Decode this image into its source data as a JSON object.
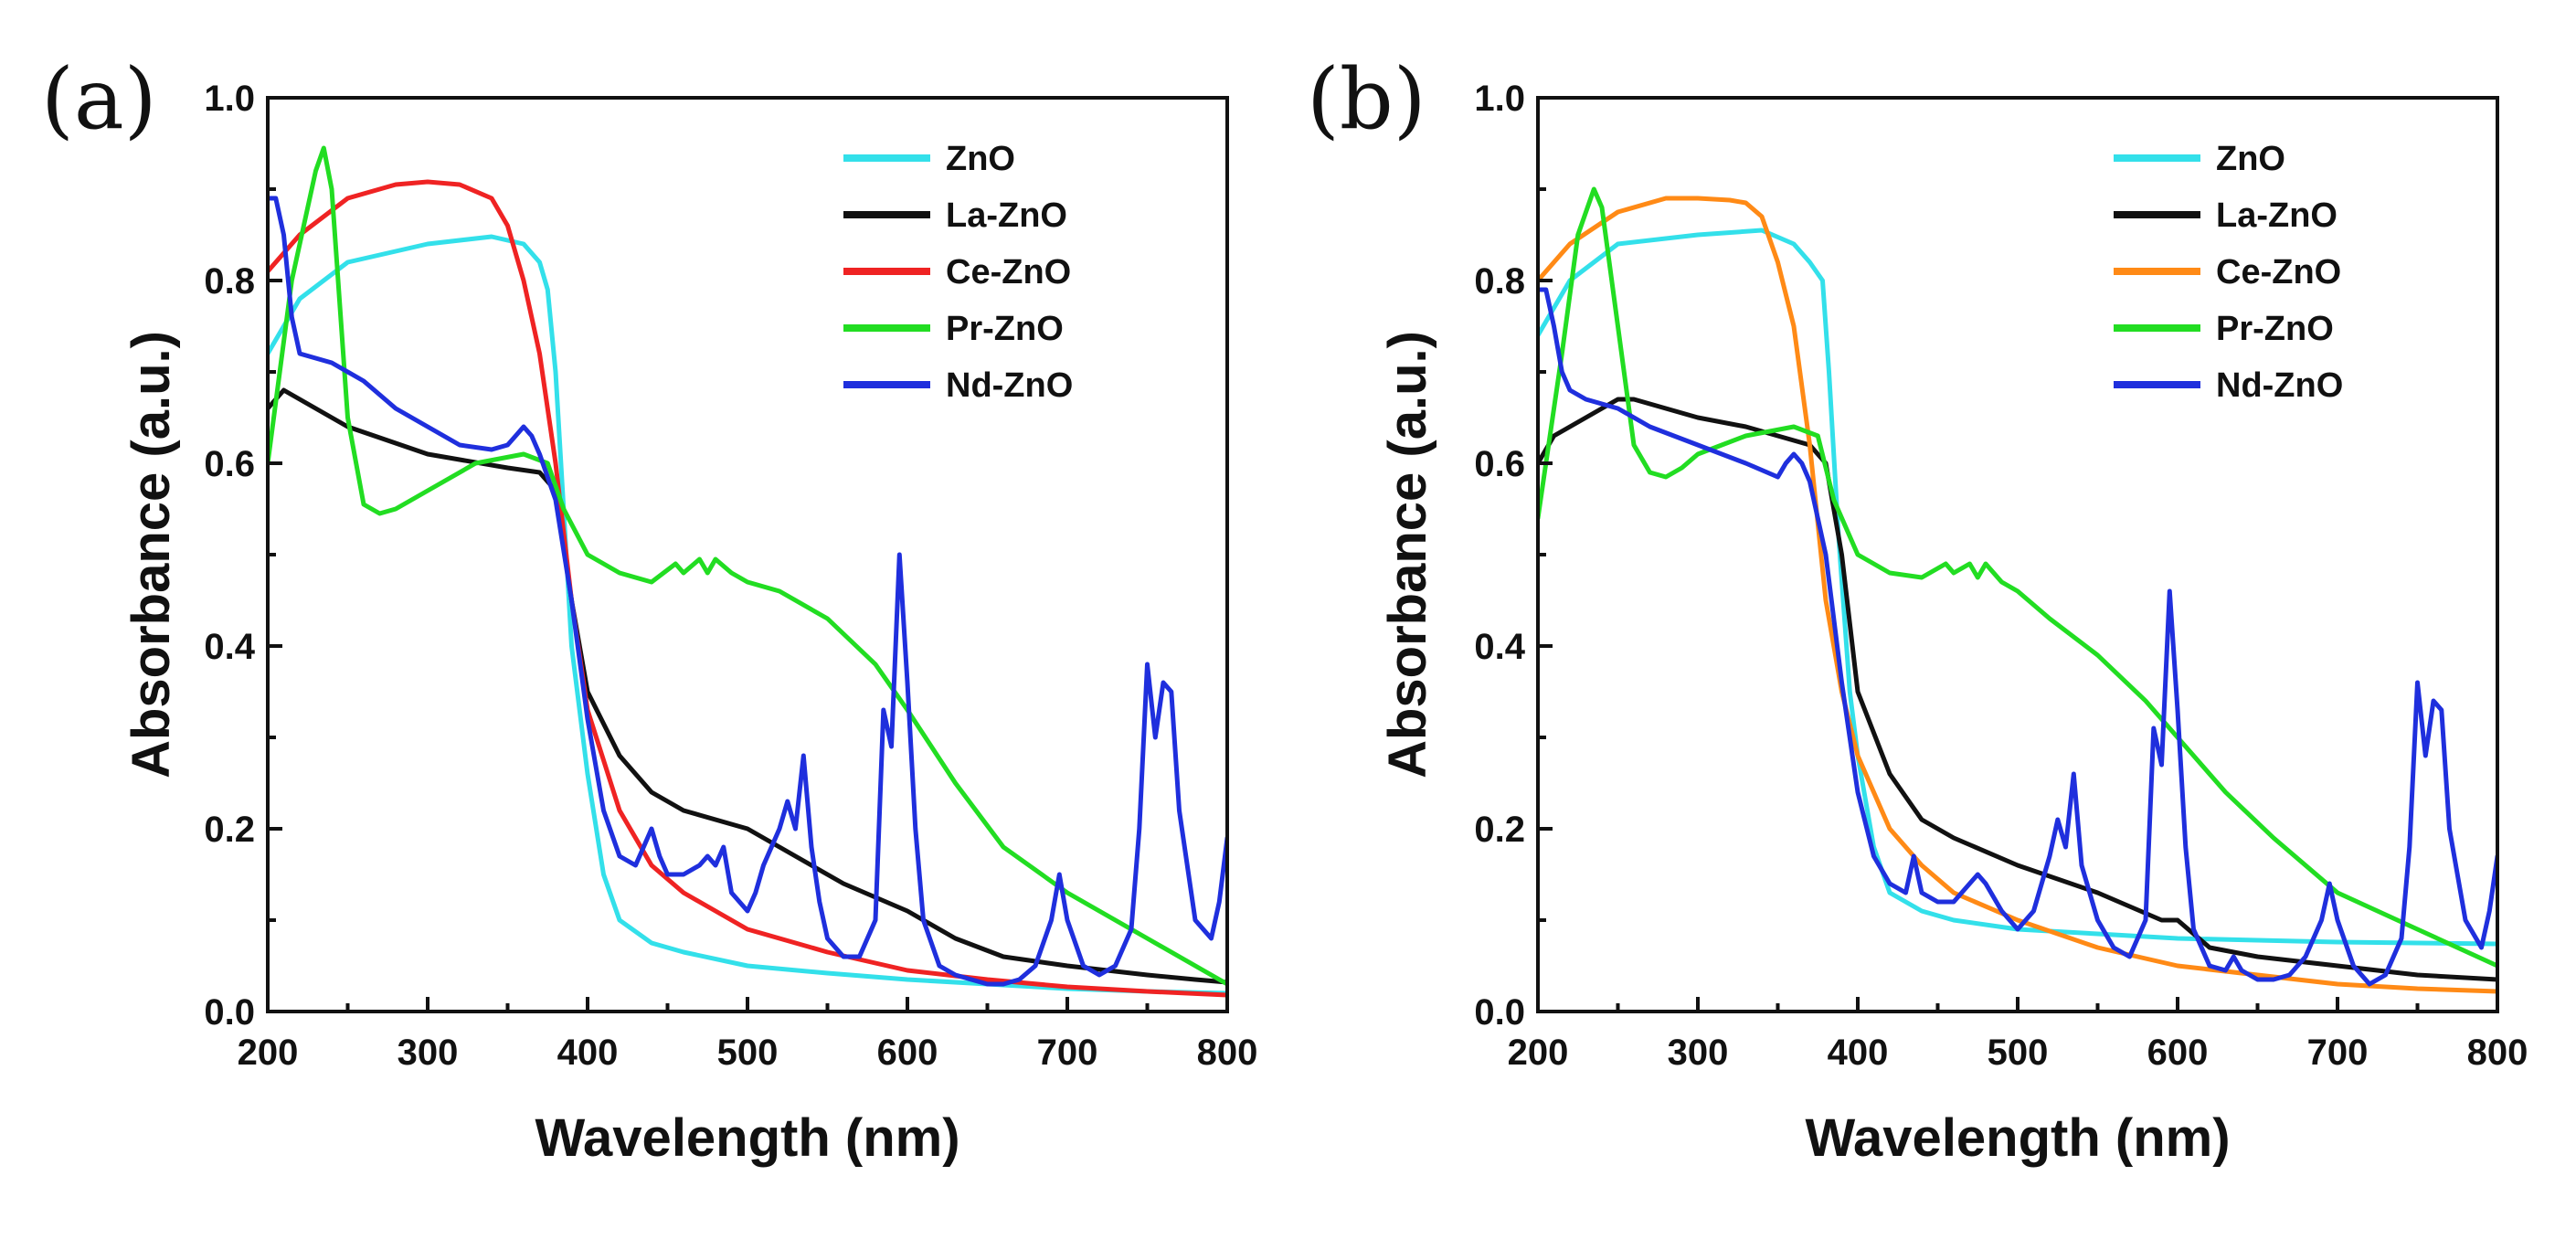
{
  "chart_data": [
    {
      "type": "line",
      "panel": "(a)",
      "xlabel": "Wavelength (nm)",
      "ylabel": "Absorbance (a.u.)",
      "xlim": [
        200,
        800
      ],
      "ylim": [
        0.0,
        1.0
      ],
      "xticks": [
        "200",
        "300",
        "400",
        "500",
        "600",
        "700",
        "800"
      ],
      "yticks": [
        "0.0",
        "0.2",
        "0.4",
        "0.6",
        "0.8",
        "1.0"
      ],
      "legend_position": "top-right",
      "series": [
        {
          "name": "ZnO",
          "color": "#33e0ea",
          "x": [
            200,
            220,
            250,
            300,
            340,
            360,
            370,
            375,
            380,
            385,
            390,
            400,
            410,
            420,
            440,
            460,
            500,
            550,
            600,
            650,
            700,
            750,
            800
          ],
          "y": [
            0.72,
            0.78,
            0.82,
            0.84,
            0.848,
            0.84,
            0.82,
            0.79,
            0.7,
            0.55,
            0.4,
            0.26,
            0.15,
            0.1,
            0.075,
            0.065,
            0.05,
            0.042,
            0.035,
            0.03,
            0.025,
            0.022,
            0.02
          ]
        },
        {
          "name": "La-ZnO",
          "color": "#111111",
          "x": [
            200,
            210,
            250,
            300,
            350,
            370,
            380,
            390,
            400,
            420,
            440,
            460,
            500,
            530,
            560,
            600,
            630,
            660,
            700,
            750,
            780,
            800
          ],
          "y": [
            0.66,
            0.68,
            0.64,
            0.61,
            0.595,
            0.59,
            0.57,
            0.45,
            0.35,
            0.28,
            0.24,
            0.22,
            0.2,
            0.17,
            0.14,
            0.11,
            0.08,
            0.06,
            0.05,
            0.04,
            0.035,
            0.032
          ]
        },
        {
          "name": "Ce-ZnO",
          "color": "#ef2323",
          "x": [
            200,
            220,
            250,
            280,
            300,
            320,
            340,
            350,
            360,
            370,
            380,
            390,
            400,
            420,
            440,
            460,
            480,
            500,
            550,
            600,
            650,
            700,
            750,
            800
          ],
          "y": [
            0.81,
            0.85,
            0.89,
            0.905,
            0.908,
            0.905,
            0.89,
            0.86,
            0.8,
            0.72,
            0.6,
            0.45,
            0.33,
            0.22,
            0.16,
            0.13,
            0.11,
            0.09,
            0.065,
            0.045,
            0.035,
            0.027,
            0.022,
            0.018
          ]
        },
        {
          "name": "Pr-ZnO",
          "color": "#22dd22",
          "x": [
            200,
            215,
            230,
            235,
            240,
            250,
            260,
            270,
            280,
            300,
            330,
            360,
            375,
            385,
            400,
            420,
            440,
            455,
            460,
            470,
            475,
            480,
            490,
            495,
            500,
            520,
            550,
            580,
            600,
            630,
            660,
            700,
            750,
            800
          ],
          "y": [
            0.6,
            0.8,
            0.92,
            0.945,
            0.9,
            0.65,
            0.555,
            0.545,
            0.55,
            0.57,
            0.6,
            0.61,
            0.6,
            0.55,
            0.5,
            0.48,
            0.47,
            0.49,
            0.48,
            0.495,
            0.48,
            0.495,
            0.48,
            0.475,
            0.47,
            0.46,
            0.43,
            0.38,
            0.33,
            0.25,
            0.18,
            0.13,
            0.08,
            0.03
          ]
        },
        {
          "name": "Nd-ZnO",
          "color": "#1f2fdd",
          "x": [
            200,
            205,
            210,
            215,
            220,
            240,
            260,
            280,
            300,
            320,
            340,
            350,
            355,
            360,
            365,
            370,
            380,
            390,
            400,
            410,
            420,
            430,
            435,
            440,
            445,
            450,
            460,
            470,
            475,
            480,
            485,
            490,
            500,
            505,
            510,
            520,
            525,
            530,
            535,
            540,
            545,
            550,
            560,
            570,
            580,
            585,
            590,
            595,
            600,
            605,
            610,
            620,
            630,
            640,
            650,
            660,
            670,
            680,
            690,
            695,
            700,
            710,
            720,
            730,
            740,
            745,
            750,
            755,
            760,
            765,
            770,
            780,
            790,
            795,
            800
          ],
          "y": [
            0.89,
            0.89,
            0.85,
            0.76,
            0.72,
            0.71,
            0.69,
            0.66,
            0.64,
            0.62,
            0.615,
            0.62,
            0.63,
            0.64,
            0.63,
            0.61,
            0.56,
            0.45,
            0.32,
            0.22,
            0.17,
            0.16,
            0.18,
            0.2,
            0.17,
            0.15,
            0.15,
            0.16,
            0.17,
            0.16,
            0.18,
            0.13,
            0.11,
            0.13,
            0.16,
            0.2,
            0.23,
            0.2,
            0.28,
            0.18,
            0.12,
            0.08,
            0.06,
            0.06,
            0.1,
            0.33,
            0.29,
            0.5,
            0.36,
            0.2,
            0.1,
            0.05,
            0.04,
            0.035,
            0.03,
            0.03,
            0.035,
            0.05,
            0.1,
            0.15,
            0.1,
            0.05,
            0.04,
            0.05,
            0.09,
            0.2,
            0.38,
            0.3,
            0.36,
            0.35,
            0.22,
            0.1,
            0.08,
            0.12,
            0.19
          ]
        }
      ]
    },
    {
      "type": "line",
      "panel": "(b)",
      "xlabel": "Wavelength (nm)",
      "ylabel": "Absorbance (a.u.)",
      "xlim": [
        200,
        800
      ],
      "ylim": [
        0.0,
        1.0
      ],
      "xticks": [
        "200",
        "300",
        "400",
        "500",
        "600",
        "700",
        "800"
      ],
      "yticks": [
        "0.0",
        "0.2",
        "0.4",
        "0.6",
        "0.8",
        "1.0"
      ],
      "legend_position": "top-right",
      "series": [
        {
          "name": "ZnO",
          "color": "#33e0ea",
          "x": [
            200,
            220,
            250,
            300,
            340,
            360,
            370,
            378,
            382,
            388,
            395,
            400,
            410,
            420,
            440,
            460,
            500,
            550,
            600,
            650,
            700,
            750,
            800
          ],
          "y": [
            0.74,
            0.8,
            0.84,
            0.85,
            0.855,
            0.84,
            0.82,
            0.8,
            0.7,
            0.52,
            0.35,
            0.28,
            0.18,
            0.13,
            0.11,
            0.1,
            0.09,
            0.085,
            0.08,
            0.078,
            0.076,
            0.075,
            0.074
          ]
        },
        {
          "name": "La-ZnO",
          "color": "#111111",
          "x": [
            200,
            210,
            230,
            250,
            260,
            280,
            300,
            330,
            350,
            370,
            380,
            390,
            400,
            420,
            440,
            460,
            500,
            550,
            590,
            600,
            620,
            650,
            700,
            750,
            800
          ],
          "y": [
            0.6,
            0.63,
            0.65,
            0.67,
            0.67,
            0.66,
            0.65,
            0.64,
            0.63,
            0.62,
            0.6,
            0.5,
            0.35,
            0.26,
            0.21,
            0.19,
            0.16,
            0.13,
            0.1,
            0.1,
            0.07,
            0.06,
            0.05,
            0.04,
            0.035
          ]
        },
        {
          "name": "Ce-ZnO",
          "color": "#ff8a16",
          "x": [
            200,
            220,
            250,
            280,
            300,
            320,
            330,
            340,
            350,
            360,
            370,
            380,
            390,
            400,
            420,
            440,
            460,
            500,
            550,
            600,
            650,
            700,
            750,
            800
          ],
          "y": [
            0.8,
            0.84,
            0.875,
            0.89,
            0.89,
            0.888,
            0.885,
            0.87,
            0.82,
            0.75,
            0.62,
            0.45,
            0.35,
            0.28,
            0.2,
            0.16,
            0.13,
            0.1,
            0.07,
            0.05,
            0.04,
            0.03,
            0.025,
            0.022
          ]
        },
        {
          "name": "Pr-ZnO",
          "color": "#22dd22",
          "x": [
            200,
            215,
            225,
            235,
            240,
            250,
            260,
            270,
            280,
            290,
            300,
            330,
            360,
            375,
            385,
            400,
            420,
            440,
            455,
            460,
            470,
            475,
            480,
            490,
            500,
            520,
            550,
            580,
            600,
            630,
            660,
            700,
            750,
            800
          ],
          "y": [
            0.54,
            0.72,
            0.85,
            0.9,
            0.88,
            0.75,
            0.62,
            0.59,
            0.585,
            0.595,
            0.61,
            0.63,
            0.64,
            0.63,
            0.56,
            0.5,
            0.48,
            0.475,
            0.49,
            0.48,
            0.49,
            0.475,
            0.49,
            0.47,
            0.46,
            0.43,
            0.39,
            0.34,
            0.3,
            0.24,
            0.19,
            0.13,
            0.09,
            0.05
          ]
        },
        {
          "name": "Nd-ZnO",
          "color": "#1f2fdd",
          "x": [
            200,
            205,
            210,
            215,
            220,
            230,
            250,
            270,
            300,
            330,
            350,
            355,
            360,
            365,
            370,
            380,
            390,
            400,
            410,
            420,
            430,
            435,
            440,
            450,
            460,
            470,
            475,
            480,
            490,
            500,
            510,
            520,
            525,
            530,
            535,
            540,
            550,
            560,
            570,
            580,
            585,
            590,
            595,
            600,
            605,
            610,
            620,
            630,
            635,
            640,
            650,
            660,
            670,
            680,
            690,
            695,
            700,
            710,
            720,
            730,
            740,
            745,
            750,
            755,
            760,
            765,
            770,
            780,
            790,
            795,
            800
          ],
          "y": [
            0.79,
            0.79,
            0.75,
            0.7,
            0.68,
            0.67,
            0.66,
            0.64,
            0.62,
            0.6,
            0.585,
            0.6,
            0.61,
            0.6,
            0.58,
            0.5,
            0.36,
            0.24,
            0.17,
            0.14,
            0.13,
            0.17,
            0.13,
            0.12,
            0.12,
            0.14,
            0.15,
            0.14,
            0.11,
            0.09,
            0.11,
            0.17,
            0.21,
            0.18,
            0.26,
            0.16,
            0.1,
            0.07,
            0.06,
            0.1,
            0.31,
            0.27,
            0.46,
            0.33,
            0.18,
            0.09,
            0.05,
            0.045,
            0.06,
            0.045,
            0.035,
            0.035,
            0.04,
            0.06,
            0.1,
            0.14,
            0.1,
            0.05,
            0.03,
            0.04,
            0.08,
            0.18,
            0.36,
            0.28,
            0.34,
            0.33,
            0.2,
            0.1,
            0.07,
            0.11,
            0.17
          ]
        }
      ]
    }
  ]
}
